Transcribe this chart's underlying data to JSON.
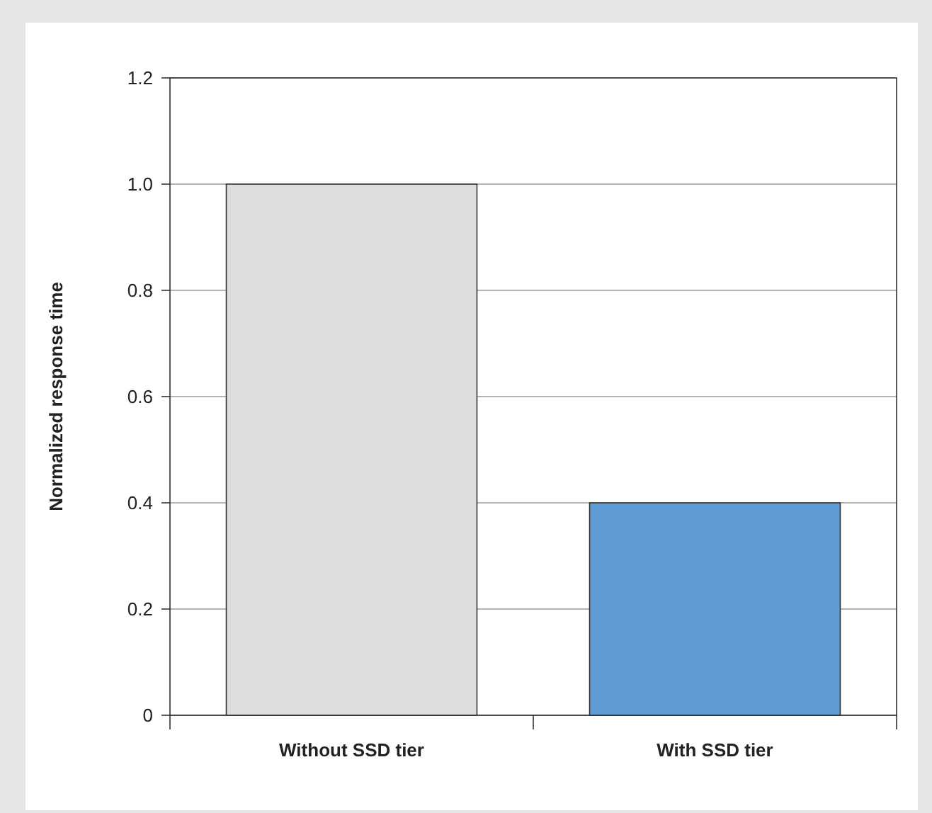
{
  "chart_data": {
    "type": "bar",
    "ylabel": "Normalized response time",
    "categories": [
      "Without SSD tier",
      "With SSD tier"
    ],
    "values": [
      1.0,
      0.4
    ],
    "colors": [
      "#dcdedd",
      "#5f9bd5"
    ],
    "ylim": [
      0,
      1.2
    ],
    "yticks": [
      0,
      0.2,
      0.4,
      0.6,
      0.8,
      {
        "value": 1.0,
        "label": "1.0"
      },
      1.2
    ],
    "grid": "y"
  }
}
